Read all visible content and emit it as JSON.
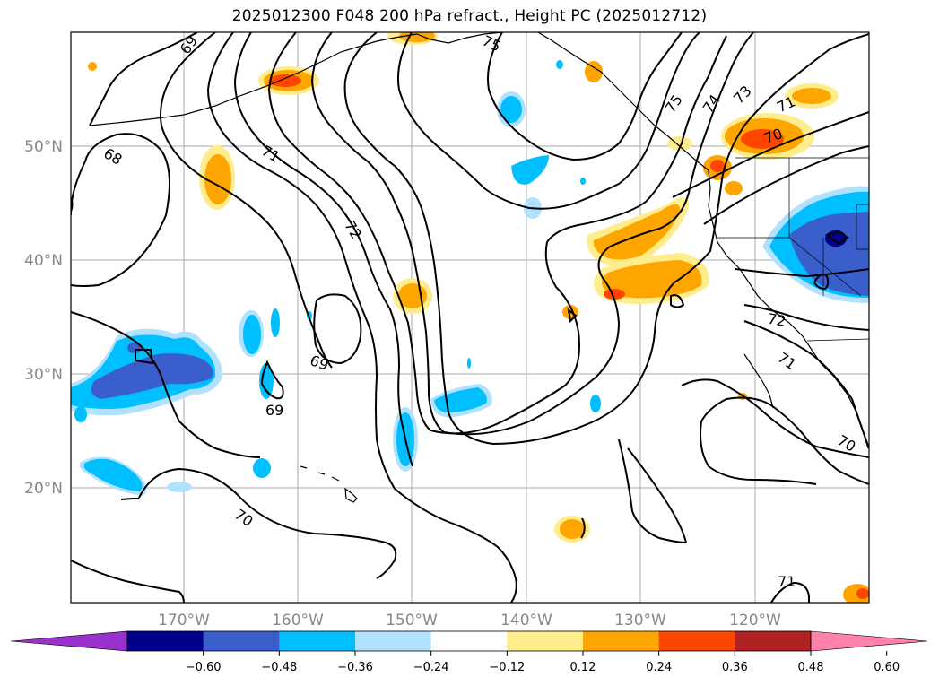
{
  "title": "2025012300 F048 200 hPa refract., Height PC (2025012712)",
  "map": {
    "lat_labels": [
      "50°N",
      "40°N",
      "30°N",
      "20°N"
    ],
    "lon_labels": [
      "170°W",
      "160°W",
      "150°W",
      "140°W",
      "130°W",
      "120°W"
    ],
    "gridline_color": "#aaaaaa",
    "coastline_color": "#000000"
  },
  "contour_labels": [
    "69",
    "75",
    "75",
    "74",
    "73",
    "71",
    "70",
    "68",
    "71",
    "72",
    "69",
    "69",
    "72",
    "71",
    "70",
    "70",
    "71"
  ],
  "colorbar": {
    "ticks": [
      "−0.60",
      "−0.48",
      "−0.36",
      "−0.24",
      "−0.12",
      "0.12",
      "0.24",
      "0.36",
      "0.48",
      "0.60"
    ],
    "colors": [
      "#9932cc",
      "#00008b",
      "#3a5fcd",
      "#00bfff",
      "#b0e2ff",
      "#ffffff",
      "#ffec8b",
      "#ffa500",
      "#ff4500",
      "#b22222",
      "#ff82ab"
    ]
  }
}
